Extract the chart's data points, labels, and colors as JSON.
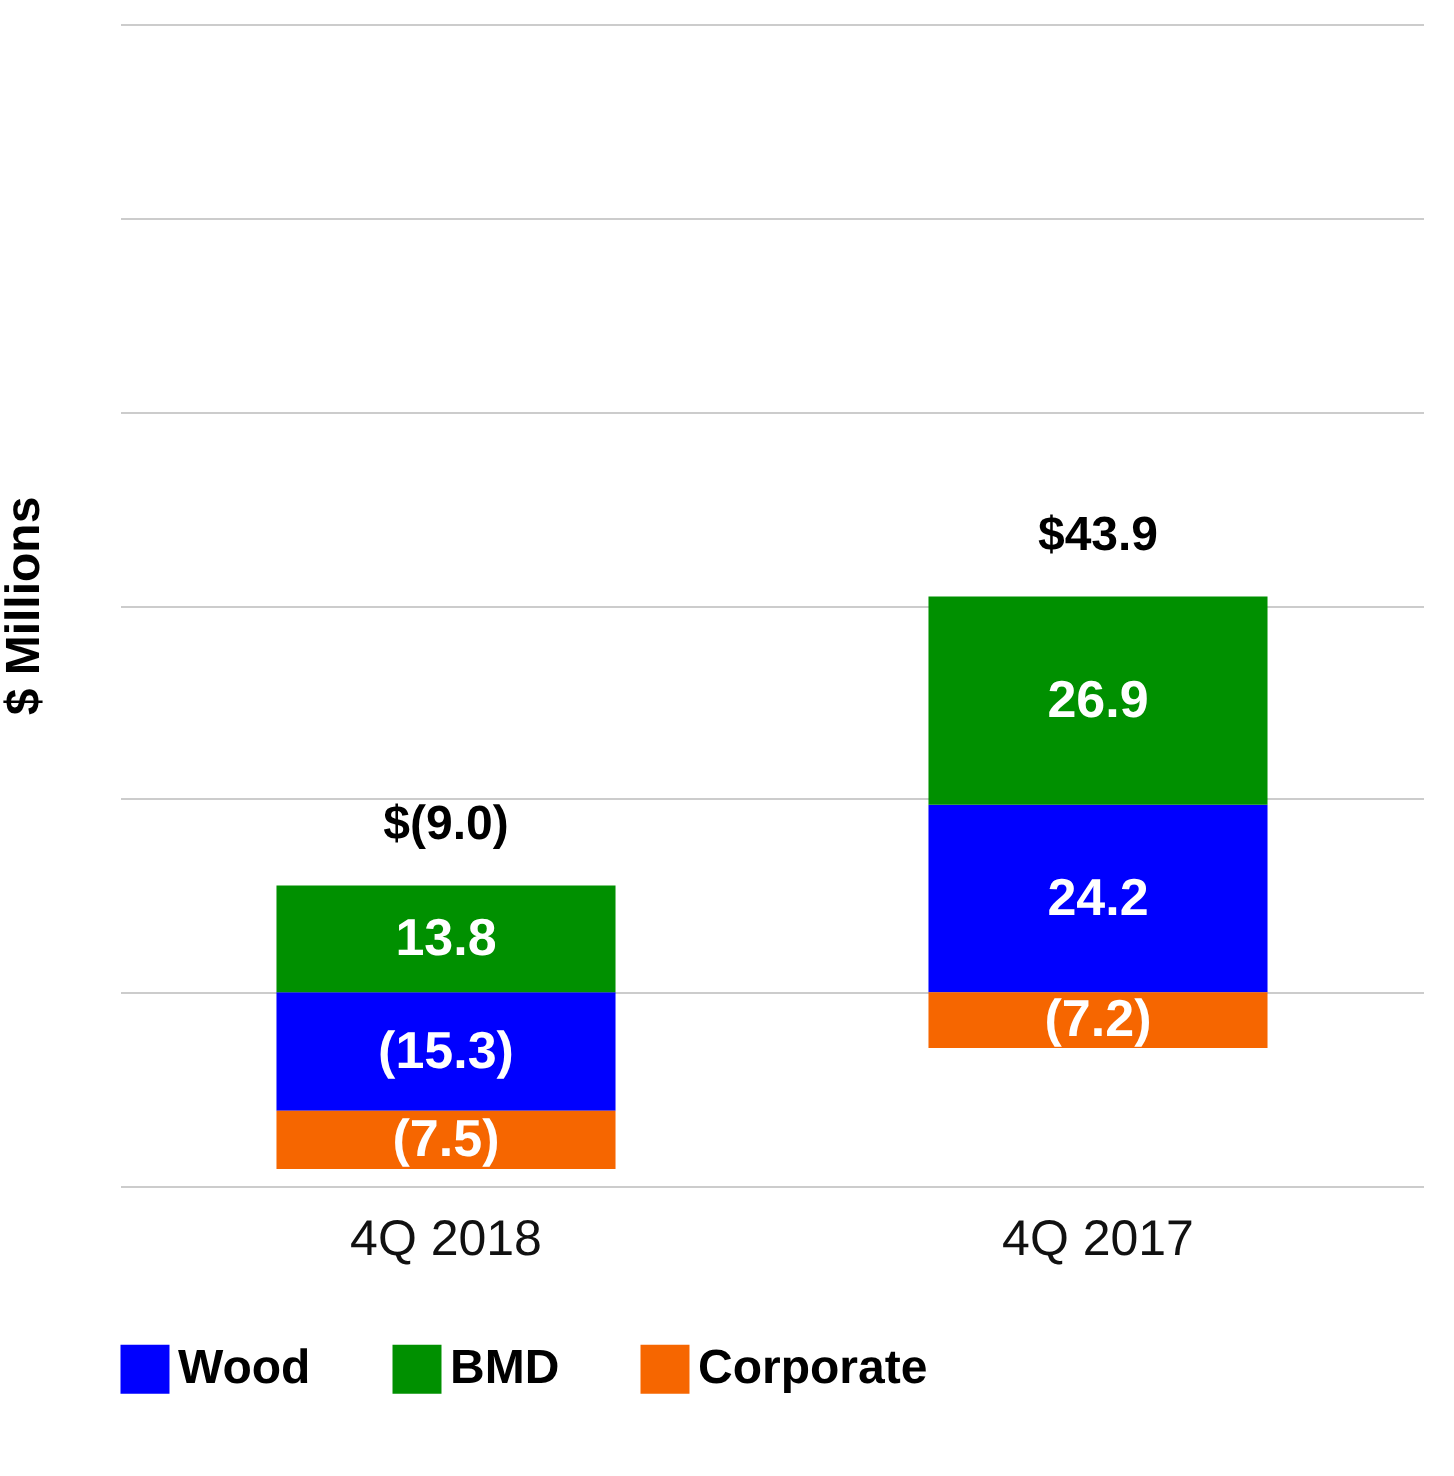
{
  "chart_data": {
    "type": "bar",
    "stacked": true,
    "ylabel": "$ Millions",
    "categories": [
      "4Q 2018",
      "4Q 2017"
    ],
    "series": [
      {
        "name": "Wood",
        "color": "#0000ff",
        "values": [
          -15.3,
          24.2
        ],
        "value_labels": [
          "(15.3)",
          "24.2"
        ]
      },
      {
        "name": "BMD",
        "color": "#009000",
        "values": [
          13.8,
          26.9
        ],
        "value_labels": [
          "13.8",
          "26.9"
        ]
      },
      {
        "name": "Corporate",
        "color": "#f66600",
        "values": [
          -7.5,
          -7.2
        ],
        "value_labels": [
          "(7.5)",
          "(7.2)"
        ]
      }
    ],
    "totals": [
      "$(9.0)",
      "$43.9"
    ],
    "ylim": [
      -25,
      125
    ],
    "yticks": [
      {
        "value": -25,
        "label": null
      },
      {
        "value": 0,
        "label": null
      },
      {
        "value": 25,
        "label": null
      },
      {
        "value": 50,
        "label": null
      },
      {
        "value": 75,
        "label": null
      },
      {
        "value": 100,
        "label": null
      },
      {
        "value": 125,
        "label": null
      }
    ],
    "grid": "y",
    "legend": "bottom",
    "tick_labels": "x"
  }
}
